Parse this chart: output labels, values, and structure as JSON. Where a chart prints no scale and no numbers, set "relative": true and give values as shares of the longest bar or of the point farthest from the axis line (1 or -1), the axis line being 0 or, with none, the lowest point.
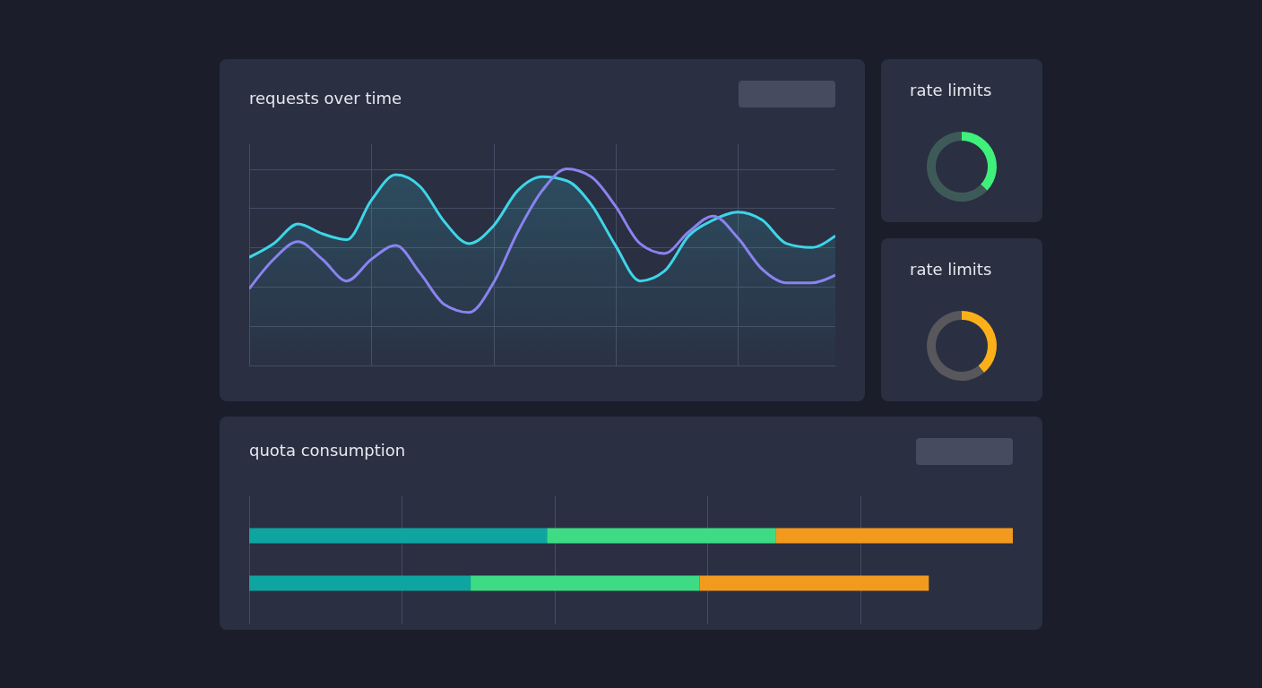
{
  "chart_data": [
    {
      "type": "line",
      "title": "requests over time",
      "relative": true,
      "grid": true,
      "categories": [
        null,
        null,
        null,
        null,
        null,
        null,
        null,
        null,
        null,
        null,
        null,
        null,
        null,
        null,
        null,
        null,
        null,
        null,
        null,
        null,
        null,
        null,
        null,
        null,
        null
      ],
      "series": [
        {
          "type": "area",
          "color": "#3dd6e8",
          "values": [
            0.55,
            0.62,
            0.72,
            0.67,
            0.64,
            0.84,
            0.97,
            0.91,
            0.73,
            0.62,
            0.71,
            0.89,
            0.96,
            0.94,
            0.82,
            0.61,
            0.43,
            0.48,
            0.66,
            0.74,
            0.78,
            0.74,
            0.62,
            0.6,
            0.66
          ]
        },
        {
          "type": "line",
          "color": "#8a83f0",
          "values": [
            0.39,
            0.54,
            0.63,
            0.54,
            0.43,
            0.54,
            0.61,
            0.47,
            0.31,
            0.27,
            0.42,
            0.68,
            0.89,
            1.0,
            0.96,
            0.81,
            0.62,
            0.57,
            0.68,
            0.76,
            0.65,
            0.49,
            0.42,
            0.42,
            0.46
          ]
        }
      ]
    },
    {
      "type": "donut",
      "title": "rate limits",
      "categories": [
        null,
        null
      ],
      "values": [
        37,
        63
      ],
      "colors": [
        "#3ff07a",
        "#3e5a58"
      ]
    },
    {
      "type": "donut",
      "title": "rate limits",
      "categories": [
        null,
        null
      ],
      "values": [
        39,
        61
      ],
      "colors": [
        "#fbb01a",
        "#57575c"
      ]
    },
    {
      "type": "bar",
      "title": "quota consumption",
      "orientation": "horizontal",
      "stacked": true,
      "relative": true,
      "grid": true,
      "categories": [
        null,
        null
      ],
      "series": [
        {
          "color": "#0ea5a0",
          "values": [
            0.39,
            0.29
          ]
        },
        {
          "color": "#3ddc84",
          "values": [
            0.3,
            0.3
          ]
        },
        {
          "color": "#f29a1e",
          "values": [
            0.31,
            0.3
          ]
        }
      ]
    }
  ]
}
